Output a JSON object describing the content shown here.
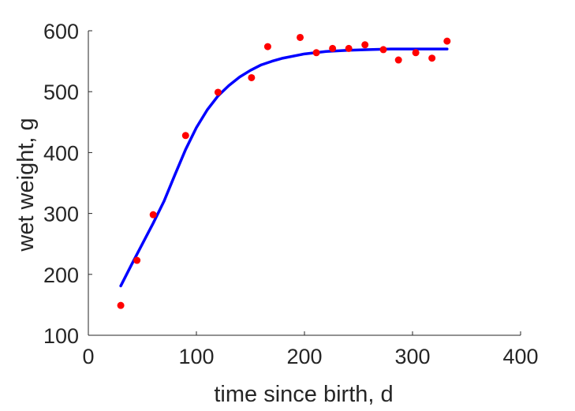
{
  "chart_data": {
    "type": "scatter",
    "title": "",
    "xlabel": "time since birth, d",
    "ylabel": "wet weight, g",
    "xlim": [
      0,
      400
    ],
    "ylim": [
      100,
      600
    ],
    "xticks": [
      "0",
      "100",
      "200",
      "300",
      "400"
    ],
    "yticks": [
      "100",
      "200",
      "300",
      "400",
      "500",
      "600"
    ],
    "grid": false,
    "legend": "none",
    "series": [
      {
        "kind": "points",
        "color": "#ff0000",
        "x": [
          30,
          45,
          60,
          90,
          120,
          151,
          166,
          196,
          211,
          226,
          241,
          256,
          273,
          287,
          303,
          318,
          332
        ],
        "y": [
          149,
          223,
          298,
          428,
          499,
          523,
          574,
          589,
          564,
          571,
          571,
          577,
          569,
          552,
          564,
          555,
          583
        ]
      },
      {
        "kind": "line",
        "color": "#0000ff",
        "x": [
          30,
          40,
          50,
          60,
          70,
          80,
          90,
          100,
          110,
          120,
          130,
          140,
          150,
          160,
          170,
          180,
          200,
          220,
          240,
          260,
          280,
          300,
          320,
          332
        ],
        "y": [
          181,
          216,
          250,
          284,
          320,
          363,
          405,
          441,
          470,
          493,
          510,
          524,
          535,
          544,
          550,
          555,
          562,
          566,
          568,
          569,
          570,
          570,
          570,
          570
        ]
      }
    ]
  }
}
